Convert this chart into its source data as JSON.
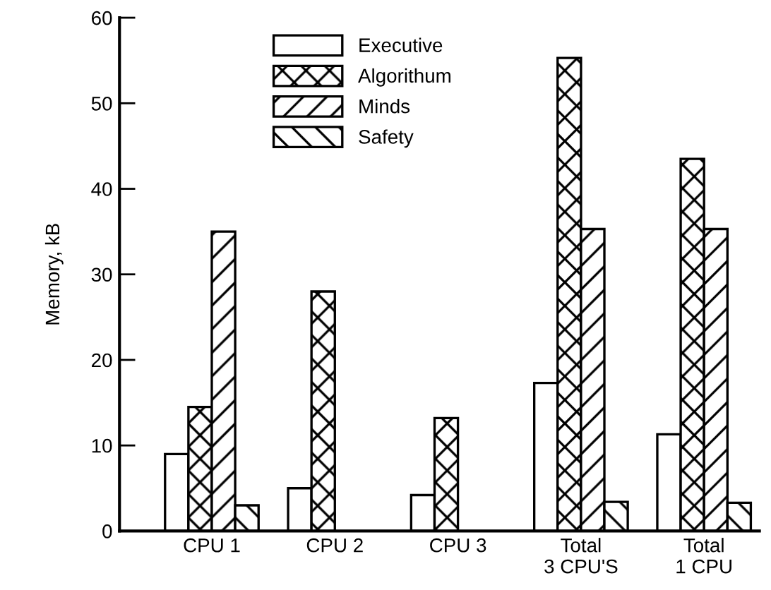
{
  "chart_data": {
    "type": "bar",
    "ylabel": "Memory, kB",
    "categories": [
      "CPU 1",
      "CPU 2",
      "CPU 3",
      "Total\n3 CPU'S",
      "Total\n1 CPU"
    ],
    "series": [
      {
        "name": "Executive",
        "color": "#ffffff",
        "values": [
          9,
          5,
          4.2,
          17.3,
          11.3
        ]
      },
      {
        "name": "Algorithum",
        "color": "#000000",
        "values": [
          14.5,
          28,
          13.2,
          55.3,
          43.5
        ]
      },
      {
        "name": "Minds",
        "color": "#000000",
        "values": [
          35,
          null,
          null,
          35.3,
          35.3
        ]
      },
      {
        "name": "Safety",
        "color": "#000000",
        "values": [
          3,
          null,
          null,
          3.4,
          3.3
        ]
      }
    ],
    "ylim": [
      0,
      60
    ],
    "yticks": [
      0,
      10,
      20,
      30,
      40,
      50,
      60
    ],
    "grid": false,
    "legend": "top"
  }
}
